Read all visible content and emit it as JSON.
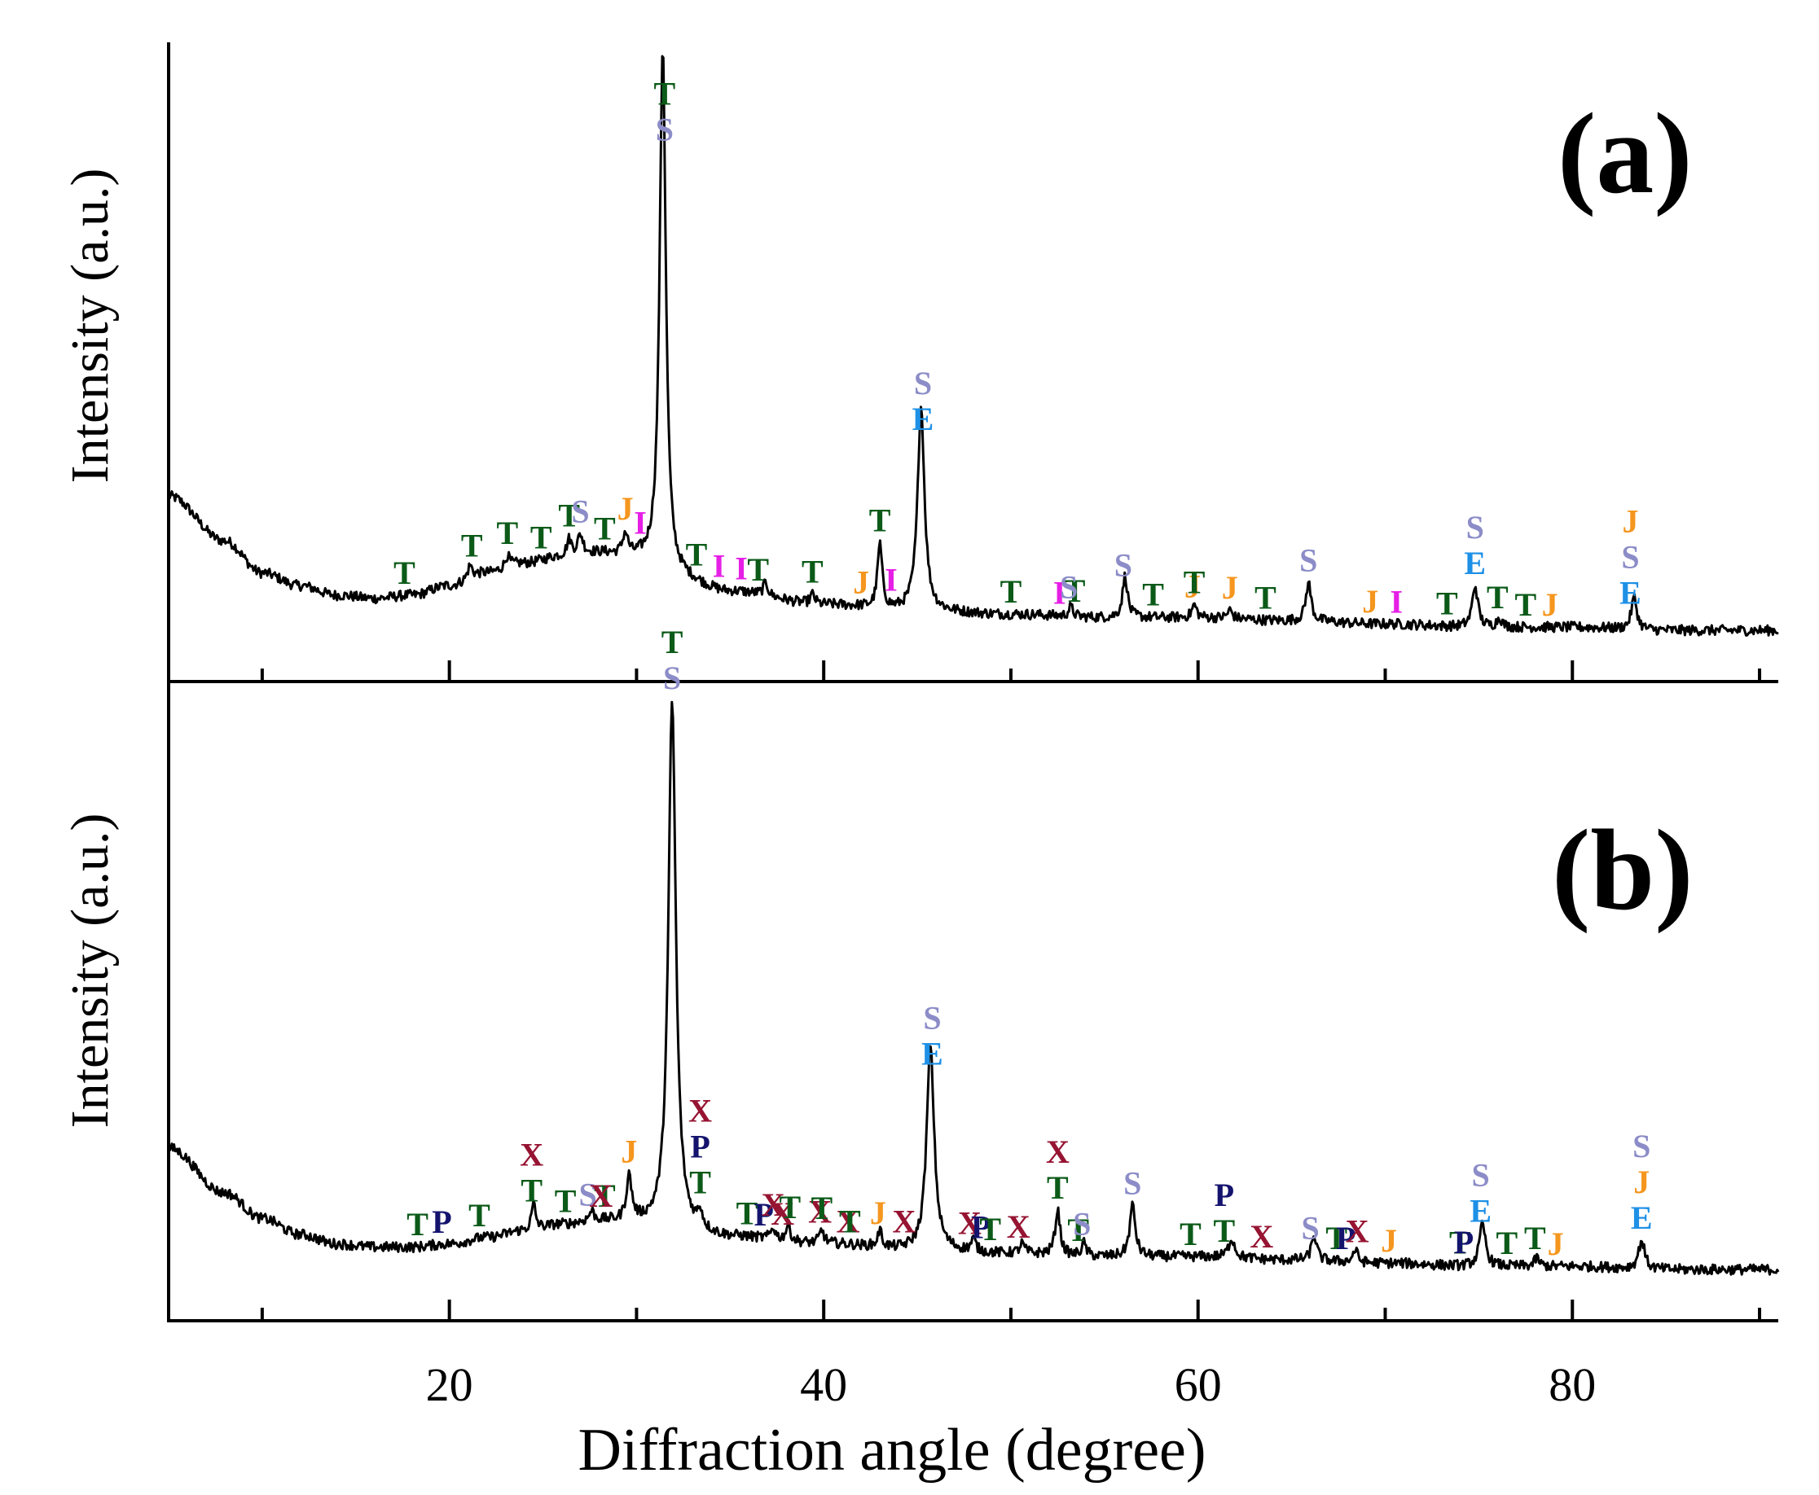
{
  "chart_data": {
    "type": "line",
    "xlabel": "Diffraction angle (degree)",
    "xlim": [
      5,
      91
    ],
    "xticks_major": [
      20,
      40,
      60,
      80
    ],
    "xticks_minor": [
      10,
      30,
      50,
      70,
      90
    ],
    "phase_colors": {
      "T": "#0b5a18",
      "S": "#8c8cc8",
      "E": "#1e90e6",
      "J": "#f5961e",
      "I": "#e61ee6",
      "X": "#961432",
      "P": "#14146e"
    },
    "panels": [
      {
        "label": "(a)",
        "ylabel": "Intensity (a.u.)",
        "ylim": [
          0,
          100
        ],
        "baseline": [
          [
            5,
            29
          ],
          [
            8,
            22
          ],
          [
            10,
            17
          ],
          [
            12,
            15
          ],
          [
            14,
            13.5
          ],
          [
            16,
            13
          ],
          [
            18,
            13.5
          ],
          [
            20,
            15
          ],
          [
            22,
            17
          ],
          [
            24,
            18.5
          ],
          [
            26,
            19.5
          ],
          [
            28,
            20
          ],
          [
            30,
            19
          ],
          [
            32,
            16
          ],
          [
            35,
            14
          ],
          [
            40,
            12
          ],
          [
            45,
            11
          ],
          [
            50,
            10.5
          ],
          [
            55,
            10
          ],
          [
            60,
            10
          ],
          [
            65,
            9.5
          ],
          [
            70,
            9
          ],
          [
            75,
            8.5
          ],
          [
            80,
            8.5
          ],
          [
            85,
            8
          ],
          [
            91,
            8
          ]
        ],
        "peaks": [
          {
            "x": 31.4,
            "h": 83,
            "w": 0.2
          },
          {
            "x": 45.2,
            "h": 32,
            "w": 0.22
          },
          {
            "x": 43.0,
            "h": 10,
            "w": 0.15
          },
          {
            "x": 56.1,
            "h": 6.5,
            "w": 0.16
          },
          {
            "x": 65.9,
            "h": 6,
            "w": 0.17
          },
          {
            "x": 74.8,
            "h": 6.5,
            "w": 0.18
          },
          {
            "x": 83.3,
            "h": 5,
            "w": 0.18
          },
          {
            "x": 29.4,
            "h": 3.5,
            "w": 0.18
          },
          {
            "x": 27.0,
            "h": 3,
            "w": 0.18
          },
          {
            "x": 26.4,
            "h": 2.5,
            "w": 0.15
          },
          {
            "x": 21.1,
            "h": 2,
            "w": 0.15
          },
          {
            "x": 23.1,
            "h": 1.8,
            "w": 0.15
          },
          {
            "x": 36.9,
            "h": 2,
            "w": 0.15
          },
          {
            "x": 39.4,
            "h": 1.5,
            "w": 0.15
          },
          {
            "x": 53.2,
            "h": 1.5,
            "w": 0.15
          },
          {
            "x": 59.8,
            "h": 2,
            "w": 0.15
          },
          {
            "x": 61.7,
            "h": 1.3,
            "w": 0.15
          },
          {
            "x": 76.1,
            "h": 1.5,
            "w": 0.15
          }
        ],
        "labels": [
          {
            "x": 31.5,
            "stack": [
              "T",
              "S"
            ]
          },
          {
            "x": 45.3,
            "stack": [
              "S",
              "E"
            ]
          },
          {
            "x": 17.6,
            "stack": [
              "T"
            ]
          },
          {
            "x": 21.2,
            "stack": [
              "T"
            ]
          },
          {
            "x": 23.1,
            "stack": [
              "T"
            ]
          },
          {
            "x": 24.9,
            "stack": [
              "T"
            ]
          },
          {
            "x": 26.4,
            "stack": [
              "T"
            ]
          },
          {
            "x": 27.0,
            "stack": [
              "S"
            ]
          },
          {
            "x": 28.3,
            "stack": [
              "T"
            ]
          },
          {
            "x": 29.4,
            "stack": [
              "J"
            ]
          },
          {
            "x": 30.2,
            "stack": [
              "I"
            ]
          },
          {
            "x": 33.2,
            "stack": [
              "T"
            ]
          },
          {
            "x": 34.4,
            "stack": [
              "I"
            ]
          },
          {
            "x": 35.6,
            "stack": [
              "I"
            ]
          },
          {
            "x": 36.5,
            "stack": [
              "T"
            ]
          },
          {
            "x": 39.4,
            "stack": [
              "T"
            ]
          },
          {
            "x": 42.0,
            "stack": [
              "J"
            ]
          },
          {
            "x": 43.0,
            "stack": [
              "T"
            ]
          },
          {
            "x": 43.6,
            "stack": [
              "I"
            ]
          },
          {
            "x": 50.0,
            "stack": [
              "T"
            ]
          },
          {
            "x": 52.6,
            "stack": [
              "I"
            ]
          },
          {
            "x": 53.4,
            "stack": [
              "T"
            ]
          },
          {
            "x": 53.1,
            "stack": [
              "S"
            ]
          },
          {
            "x": 56.0,
            "stack": [
              "S"
            ]
          },
          {
            "x": 57.6,
            "stack": [
              "T"
            ]
          },
          {
            "x": 59.7,
            "stack": [
              "J"
            ]
          },
          {
            "x": 59.8,
            "stack": [
              "T"
            ]
          },
          {
            "x": 61.7,
            "stack": [
              "J"
            ]
          },
          {
            "x": 63.6,
            "stack": [
              "T"
            ]
          },
          {
            "x": 65.9,
            "stack": [
              "S"
            ]
          },
          {
            "x": 69.2,
            "stack": [
              "J"
            ]
          },
          {
            "x": 70.6,
            "stack": [
              "I"
            ]
          },
          {
            "x": 73.3,
            "stack": [
              "T"
            ]
          },
          {
            "x": 74.8,
            "stack": [
              "S",
              "E"
            ]
          },
          {
            "x": 76.0,
            "stack": [
              "T"
            ]
          },
          {
            "x": 77.5,
            "stack": [
              "T"
            ]
          },
          {
            "x": 78.8,
            "stack": [
              "J"
            ]
          },
          {
            "x": 83.1,
            "stack": [
              "J",
              "S",
              "E"
            ]
          }
        ]
      },
      {
        "label": "(b)",
        "ylabel": "Intensity (a.u.)",
        "ylim": [
          0,
          100
        ],
        "baseline": [
          [
            5,
            27
          ],
          [
            8,
            20
          ],
          [
            10,
            16
          ],
          [
            12,
            13.5
          ],
          [
            14,
            12
          ],
          [
            16,
            11.5
          ],
          [
            18,
            11.5
          ],
          [
            20,
            12
          ],
          [
            22,
            13
          ],
          [
            24,
            14
          ],
          [
            26,
            15
          ],
          [
            28,
            15.5
          ],
          [
            30,
            15
          ],
          [
            32,
            14
          ],
          [
            35,
            13
          ],
          [
            40,
            12
          ],
          [
            45,
            11
          ],
          [
            50,
            10.5
          ],
          [
            55,
            10
          ],
          [
            60,
            10
          ],
          [
            65,
            9.5
          ],
          [
            70,
            9
          ],
          [
            75,
            8.5
          ],
          [
            80,
            8.5
          ],
          [
            85,
            8
          ],
          [
            91,
            8
          ]
        ],
        "peaks": [
          {
            "x": 31.9,
            "h": 83,
            "w": 0.24
          },
          {
            "x": 45.7,
            "h": 32,
            "w": 0.24
          },
          {
            "x": 56.5,
            "h": 8,
            "w": 0.18
          },
          {
            "x": 52.5,
            "h": 7,
            "w": 0.16
          },
          {
            "x": 75.2,
            "h": 6.5,
            "w": 0.2
          },
          {
            "x": 83.7,
            "h": 4.5,
            "w": 0.2
          },
          {
            "x": 29.6,
            "h": 7,
            "w": 0.18
          },
          {
            "x": 24.5,
            "h": 4,
            "w": 0.14
          },
          {
            "x": 66.2,
            "h": 4,
            "w": 0.16
          },
          {
            "x": 61.8,
            "h": 3,
            "w": 0.2
          },
          {
            "x": 33.4,
            "h": 2.5,
            "w": 0.15
          },
          {
            "x": 38.1,
            "h": 2.5,
            "w": 0.15
          },
          {
            "x": 39.9,
            "h": 2,
            "w": 0.15
          },
          {
            "x": 43.0,
            "h": 2.5,
            "w": 0.15
          },
          {
            "x": 48.0,
            "h": 1.8,
            "w": 0.15
          },
          {
            "x": 53.9,
            "h": 2,
            "w": 0.15
          },
          {
            "x": 68.4,
            "h": 2,
            "w": 0.15
          },
          {
            "x": 27.6,
            "h": 1.5,
            "w": 0.15
          },
          {
            "x": 37.3,
            "h": 1.8,
            "w": 0.15
          },
          {
            "x": 50.6,
            "h": 1.5,
            "w": 0.15
          },
          {
            "x": 78.1,
            "h": 1.3,
            "w": 0.15
          }
        ],
        "labels": [
          {
            "x": 31.9,
            "stack": [
              "T",
              "S"
            ]
          },
          {
            "x": 45.8,
            "stack": [
              "S",
              "E"
            ]
          },
          {
            "x": 18.3,
            "stack": [
              "T"
            ]
          },
          {
            "x": 19.6,
            "stack": [
              "P"
            ]
          },
          {
            "x": 21.6,
            "stack": [
              "T"
            ]
          },
          {
            "x": 24.4,
            "stack": [
              "X",
              "T"
            ]
          },
          {
            "x": 26.2,
            "stack": [
              "T"
            ]
          },
          {
            "x": 27.4,
            "stack": [
              "S"
            ]
          },
          {
            "x": 28.3,
            "stack": [
              "T"
            ]
          },
          {
            "x": 28.1,
            "stack": [
              "X"
            ]
          },
          {
            "x": 29.6,
            "stack": [
              "J"
            ]
          },
          {
            "x": 33.4,
            "stack": [
              "X",
              "P",
              "T"
            ]
          },
          {
            "x": 35.9,
            "stack": [
              "T"
            ]
          },
          {
            "x": 36.8,
            "stack": [
              "P"
            ]
          },
          {
            "x": 37.3,
            "stack": [
              "X"
            ]
          },
          {
            "x": 37.8,
            "stack": [
              "X"
            ]
          },
          {
            "x": 38.2,
            "stack": [
              "T"
            ]
          },
          {
            "x": 39.8,
            "stack": [
              "X"
            ]
          },
          {
            "x": 39.9,
            "stack": [
              "T"
            ]
          },
          {
            "x": 41.3,
            "stack": [
              "X"
            ]
          },
          {
            "x": 41.4,
            "stack": [
              "T"
            ]
          },
          {
            "x": 42.9,
            "stack": [
              "J"
            ]
          },
          {
            "x": 44.3,
            "stack": [
              "X"
            ]
          },
          {
            "x": 47.8,
            "stack": [
              "X"
            ]
          },
          {
            "x": 48.4,
            "stack": [
              "P"
            ]
          },
          {
            "x": 48.9,
            "stack": [
              "T"
            ]
          },
          {
            "x": 50.4,
            "stack": [
              "X"
            ]
          },
          {
            "x": 52.5,
            "stack": [
              "X",
              "T"
            ]
          },
          {
            "x": 53.6,
            "stack": [
              "T"
            ]
          },
          {
            "x": 53.8,
            "stack": [
              "S"
            ]
          },
          {
            "x": 56.5,
            "stack": [
              "S"
            ]
          },
          {
            "x": 59.6,
            "stack": [
              "T"
            ]
          },
          {
            "x": 61.4,
            "stack": [
              "P",
              "T"
            ]
          },
          {
            "x": 63.4,
            "stack": [
              "X"
            ]
          },
          {
            "x": 66.0,
            "stack": [
              "S"
            ]
          },
          {
            "x": 67.4,
            "stack": [
              "T"
            ]
          },
          {
            "x": 67.9,
            "stack": [
              "P"
            ]
          },
          {
            "x": 68.5,
            "stack": [
              "X"
            ]
          },
          {
            "x": 70.2,
            "stack": [
              "J"
            ]
          },
          {
            "x": 74.0,
            "stack": [
              "T"
            ]
          },
          {
            "x": 74.2,
            "stack": [
              "P"
            ]
          },
          {
            "x": 75.1,
            "stack": [
              "S",
              "E"
            ]
          },
          {
            "x": 76.5,
            "stack": [
              "T"
            ]
          },
          {
            "x": 78.0,
            "stack": [
              "T"
            ]
          },
          {
            "x": 79.1,
            "stack": [
              "J"
            ]
          },
          {
            "x": 83.7,
            "stack": [
              "S",
              "J",
              "E"
            ]
          }
        ]
      }
    ]
  }
}
